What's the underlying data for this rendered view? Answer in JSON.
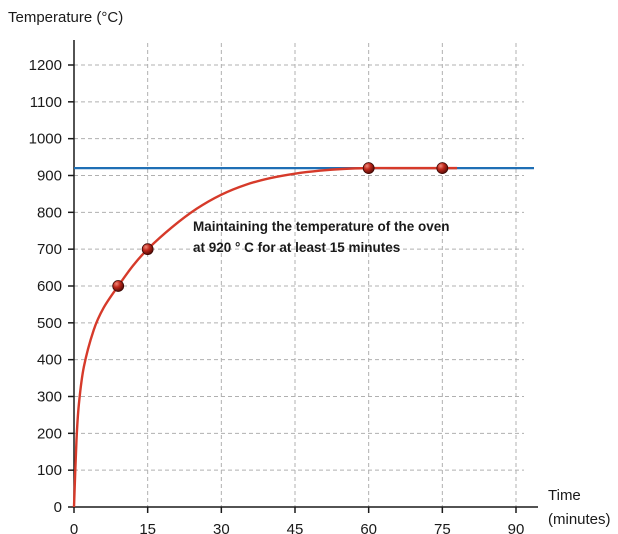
{
  "chart_data": {
    "type": "line",
    "ylabel": "Temperature (°C)",
    "xlabel_line1": "Time",
    "xlabel_line2": "(minutes)",
    "x_ticks": [
      0,
      15,
      30,
      45,
      60,
      75,
      90
    ],
    "y_ticks": [
      0,
      100,
      200,
      300,
      400,
      500,
      600,
      700,
      800,
      900,
      1000,
      1100,
      1200
    ],
    "xlim": [
      0,
      90
    ],
    "ylim": [
      0,
      1200
    ],
    "grid": true,
    "series": [
      {
        "values": [
          [
            0,
            0
          ],
          [
            0.5,
            180
          ],
          [
            1,
            280
          ],
          [
            2,
            380
          ],
          [
            4,
            480
          ],
          [
            6,
            540
          ],
          [
            9,
            600
          ],
          [
            12,
            655
          ],
          [
            15,
            700
          ],
          [
            20,
            760
          ],
          [
            25,
            810
          ],
          [
            30,
            848
          ],
          [
            35,
            875
          ],
          [
            40,
            893
          ],
          [
            45,
            905
          ],
          [
            50,
            913
          ],
          [
            55,
            918
          ],
          [
            60,
            920
          ],
          [
            65,
            920
          ],
          [
            70,
            920
          ],
          [
            75,
            920
          ],
          [
            78,
            920
          ]
        ],
        "color": "#d63a2a"
      }
    ],
    "markers": [
      [
        9,
        600
      ],
      [
        15,
        700
      ],
      [
        60,
        920
      ],
      [
        75,
        920
      ]
    ],
    "reference_line": {
      "y": 920,
      "color": "#1f6fb5"
    },
    "annotation": {
      "line1": "Maintaining the temperature of the oven",
      "line2": "at 920 ° C for at least 15 minutes"
    }
  }
}
